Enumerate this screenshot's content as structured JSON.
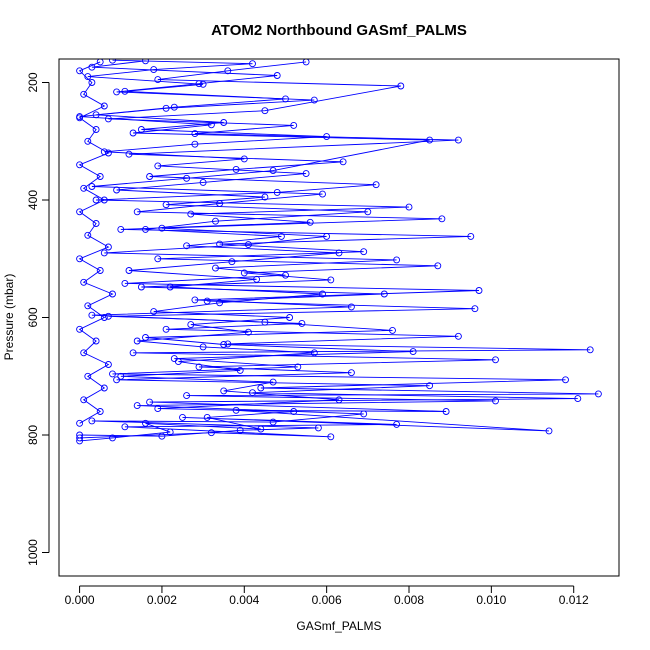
{
  "chart_data": {
    "type": "line",
    "title": "ATOM2 Northbound GASmf_PALMS",
    "xlabel": "GASmf_PALMS",
    "ylabel": "Pressure (mbar)",
    "xlim": [
      -0.0005,
      0.0131
    ],
    "ylim": [
      1040,
      160
    ],
    "y_inverted": true,
    "grid": false,
    "legend": "none",
    "x_ticks": [
      0.0,
      0.002,
      0.004,
      0.006,
      0.008,
      0.01,
      0.012
    ],
    "x_tick_labels": [
      "0.000",
      "0.002",
      "0.004",
      "0.006",
      "0.008",
      "0.010",
      "0.012"
    ],
    "y_ticks": [
      200,
      400,
      600,
      800,
      1000
    ],
    "y_tick_labels": [
      "200",
      "400",
      "600",
      "800",
      "1000"
    ],
    "series_color": "#0000ff",
    "series": [
      {
        "points": [
          [
            0.0,
            810
          ],
          [
            0.0008,
            805
          ],
          [
            0.0022,
            795
          ],
          [
            0.0016,
            780
          ],
          [
            0.0044,
            790
          ],
          [
            0.0031,
            770
          ],
          [
            0.0052,
            760
          ],
          [
            0.0019,
            755
          ],
          [
            0.0063,
            740
          ],
          [
            0.0035,
            725
          ],
          [
            0.0047,
            710
          ],
          [
            0.001,
            700
          ],
          [
            0.0039,
            690
          ],
          [
            0.0024,
            675
          ],
          [
            0.0057,
            660
          ],
          [
            0.003,
            650
          ],
          [
            0.0014,
            640
          ],
          [
            0.0041,
            625
          ],
          [
            0.0027,
            612
          ],
          [
            0.0051,
            600
          ],
          [
            0.0018,
            590
          ],
          [
            0.0034,
            575
          ],
          [
            0.0059,
            560
          ],
          [
            0.0022,
            548
          ],
          [
            0.0043,
            535
          ],
          [
            0.0012,
            520
          ],
          [
            0.0037,
            505
          ],
          [
            0.0063,
            490
          ],
          [
            0.0026,
            478
          ],
          [
            0.0049,
            462
          ],
          [
            0.0016,
            450
          ],
          [
            0.0033,
            436
          ],
          [
            0.007,
            420
          ],
          [
            0.0021,
            408
          ],
          [
            0.0045,
            395
          ],
          [
            0.0009,
            383
          ],
          [
            0.003,
            370
          ],
          [
            0.0055,
            355
          ],
          [
            0.0019,
            342
          ],
          [
            0.004,
            330
          ],
          [
            0.0006,
            318
          ],
          [
            0.0028,
            305
          ],
          [
            0.006,
            292
          ],
          [
            0.0015,
            280
          ],
          [
            0.0035,
            268
          ],
          [
            0.0004,
            255
          ],
          [
            0.0023,
            242
          ],
          [
            0.005,
            228
          ],
          [
            0.0011,
            215
          ],
          [
            0.003,
            203
          ],
          [
            0.0002,
            190
          ],
          [
            0.0018,
            178
          ],
          [
            0.0042,
            168
          ],
          [
            0.0008,
            162
          ]
        ]
      },
      {
        "points": [
          [
            0.0,
            805
          ],
          [
            0.0032,
            796
          ],
          [
            0.0061,
            803
          ],
          [
            0.0011,
            786
          ],
          [
            0.0077,
            782
          ],
          [
            0.0025,
            770
          ],
          [
            0.0114,
            793
          ],
          [
            0.0038,
            758
          ],
          [
            0.0089,
            760
          ],
          [
            0.0017,
            744
          ],
          [
            0.0121,
            738
          ],
          [
            0.0042,
            728
          ],
          [
            0.0085,
            716
          ],
          [
            0.0009,
            706
          ],
          [
            0.0066,
            694
          ],
          [
            0.0029,
            684
          ],
          [
            0.0101,
            672
          ],
          [
            0.0013,
            660
          ],
          [
            0.0124,
            655
          ],
          [
            0.0036,
            645
          ],
          [
            0.0092,
            632
          ],
          [
            0.0021,
            620
          ],
          [
            0.0054,
            610
          ],
          [
            0.0007,
            598
          ],
          [
            0.0096,
            585
          ],
          [
            0.0031,
            572
          ],
          [
            0.0074,
            560
          ],
          [
            0.0015,
            548
          ],
          [
            0.0061,
            536
          ],
          [
            0.004,
            524
          ],
          [
            0.0087,
            512
          ],
          [
            0.0019,
            500
          ],
          [
            0.0069,
            488
          ],
          [
            0.0034,
            475
          ],
          [
            0.0095,
            462
          ],
          [
            0.001,
            450
          ],
          [
            0.0056,
            438
          ],
          [
            0.0027,
            424
          ],
          [
            0.008,
            412
          ],
          [
            0.0004,
            400
          ],
          [
            0.0048,
            387
          ],
          [
            0.0072,
            374
          ],
          [
            0.0017,
            360
          ],
          [
            0.0038,
            348
          ],
          [
            0.0064,
            335
          ],
          [
            0.0012,
            322
          ],
          [
            0.0092,
            298
          ],
          [
            0.0028,
            287
          ],
          [
            0.0052,
            273
          ],
          [
            0.0007,
            262
          ],
          [
            0.0045,
            248
          ],
          [
            0.0078,
            206
          ],
          [
            0.0019,
            195
          ],
          [
            0.0036,
            180
          ],
          [
            0.0055,
            165
          ]
        ]
      },
      {
        "points": [
          [
            0.0,
            800
          ],
          [
            0.002,
            802
          ],
          [
            0.0039,
            792
          ],
          [
            0.0058,
            788
          ],
          [
            0.0003,
            776
          ],
          [
            0.0047,
            778
          ],
          [
            0.0069,
            764
          ],
          [
            0.0014,
            750
          ],
          [
            0.0101,
            742
          ],
          [
            0.0026,
            733
          ],
          [
            0.0126,
            730
          ],
          [
            0.0044,
            720
          ],
          [
            0.0118,
            706
          ],
          [
            0.0008,
            696
          ],
          [
            0.0053,
            684
          ],
          [
            0.0023,
            670
          ],
          [
            0.0081,
            658
          ],
          [
            0.0035,
            646
          ],
          [
            0.0016,
            634
          ],
          [
            0.0076,
            622
          ],
          [
            0.0045,
            608
          ],
          [
            0.0003,
            596
          ],
          [
            0.0066,
            582
          ],
          [
            0.0028,
            570
          ],
          [
            0.0097,
            554
          ],
          [
            0.0011,
            542
          ],
          [
            0.005,
            528
          ],
          [
            0.0033,
            516
          ],
          [
            0.0077,
            502
          ],
          [
            0.0006,
            490
          ],
          [
            0.0041,
            476
          ],
          [
            0.006,
            462
          ],
          [
            0.002,
            448
          ],
          [
            0.0088,
            432
          ],
          [
            0.0014,
            420
          ],
          [
            0.0034,
            406
          ],
          [
            0.0059,
            390
          ],
          [
            0.0003,
            377
          ],
          [
            0.0026,
            363
          ],
          [
            0.0047,
            350
          ],
          [
            0.0085,
            298
          ],
          [
            0.0013,
            286
          ],
          [
            0.0032,
            272
          ],
          [
            0.0,
            258
          ],
          [
            0.0021,
            244
          ],
          [
            0.0057,
            230
          ],
          [
            0.0009,
            216
          ],
          [
            0.0029,
            202
          ],
          [
            0.0048,
            188
          ],
          [
            0.0003,
            174
          ],
          [
            0.0016,
            163
          ]
        ]
      },
      {
        "points": [
          [
            0.0,
            780
          ],
          [
            0.0005,
            760
          ],
          [
            0.0001,
            740
          ],
          [
            0.0006,
            720
          ],
          [
            0.0002,
            700
          ],
          [
            0.0007,
            680
          ],
          [
            0.0001,
            660
          ],
          [
            0.0004,
            640
          ],
          [
            0.0,
            620
          ],
          [
            0.0006,
            600
          ],
          [
            0.0002,
            580
          ],
          [
            0.0008,
            560
          ],
          [
            0.0001,
            540
          ],
          [
            0.0005,
            520
          ],
          [
            0.0,
            500
          ],
          [
            0.0007,
            480
          ],
          [
            0.0002,
            460
          ],
          [
            0.0004,
            440
          ],
          [
            0.0,
            420
          ],
          [
            0.0006,
            400
          ],
          [
            0.0001,
            380
          ],
          [
            0.0005,
            360
          ],
          [
            0.0,
            340
          ],
          [
            0.0007,
            320
          ],
          [
            0.0002,
            300
          ],
          [
            0.0004,
            280
          ],
          [
            0.0,
            260
          ],
          [
            0.0006,
            240
          ],
          [
            0.0001,
            220
          ],
          [
            0.0003,
            200
          ],
          [
            0.0,
            180
          ],
          [
            0.0005,
            165
          ]
        ]
      }
    ]
  }
}
